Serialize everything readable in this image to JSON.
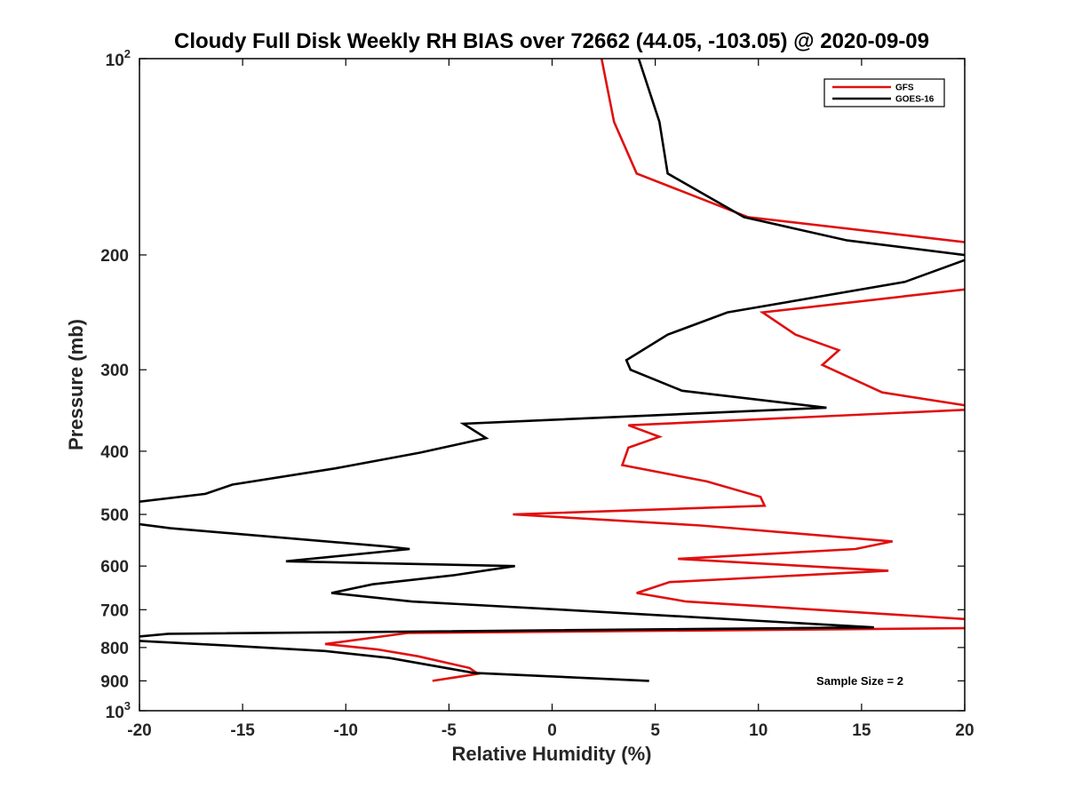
{
  "chart_data": {
    "type": "line",
    "title": "Cloudy Full Disk Weekly RH BIAS over 72662 (44.05, -103.05) @ 2020-09-09",
    "xlabel": "Relative Humidity (%)",
    "ylabel": "Pressure (mb)",
    "xlim": [
      -20,
      20
    ],
    "ylim": [
      100,
      1000
    ],
    "y_scale": "log",
    "y_reversed": true,
    "grid": false,
    "legend_position": "top-right",
    "x_ticks": [
      {
        "value": -20,
        "label": "-20"
      },
      {
        "value": -15,
        "label": "-15"
      },
      {
        "value": -10,
        "label": "-10"
      },
      {
        "value": -5,
        "label": "-5"
      },
      {
        "value": 0,
        "label": "0"
      },
      {
        "value": 5,
        "label": "5"
      },
      {
        "value": 10,
        "label": "10"
      },
      {
        "value": 15,
        "label": "15"
      },
      {
        "value": 20,
        "label": "20"
      }
    ],
    "y_ticks": [
      {
        "value": 100,
        "base": "10",
        "exp": "2"
      },
      {
        "value": 200,
        "label": "200"
      },
      {
        "value": 300,
        "label": "300"
      },
      {
        "value": 400,
        "label": "400"
      },
      {
        "value": 500,
        "label": "500"
      },
      {
        "value": 600,
        "label": "600"
      },
      {
        "value": 700,
        "label": "700"
      },
      {
        "value": 800,
        "label": "800"
      },
      {
        "value": 900,
        "label": "900"
      },
      {
        "value": 1000,
        "base": "10",
        "exp": "3"
      }
    ],
    "annotation": "Sample Size = 2",
    "series": [
      {
        "name": "GFS",
        "color": "#e01010",
        "points": [
          [
            2.4,
            100
          ],
          [
            3.0,
            125
          ],
          [
            4.1,
            150
          ],
          [
            9.5,
            175
          ],
          [
            20.5,
            192
          ],
          [
            20.5,
            225
          ],
          [
            10.2,
            245
          ],
          [
            11.8,
            265
          ],
          [
            13.9,
            280
          ],
          [
            13.1,
            295
          ],
          [
            16.0,
            325
          ],
          [
            20.5,
            342
          ],
          [
            20.5,
            345
          ],
          [
            3.7,
            365
          ],
          [
            5.2,
            380
          ],
          [
            3.7,
            395
          ],
          [
            3.4,
            420
          ],
          [
            7.5,
            445
          ],
          [
            10.1,
            470
          ],
          [
            10.3,
            485
          ],
          [
            -1.9,
            500
          ],
          [
            7.2,
            520
          ],
          [
            16.5,
            550
          ],
          [
            14.7,
            565
          ],
          [
            6.1,
            585
          ],
          [
            16.3,
            610
          ],
          [
            5.7,
            635
          ],
          [
            4.1,
            660
          ],
          [
            6.5,
            680
          ],
          [
            20.5,
            725
          ],
          [
            20.5,
            747
          ],
          [
            -7.0,
            760
          ],
          [
            -11.0,
            790
          ],
          [
            -8.5,
            805
          ],
          [
            -6.5,
            825
          ],
          [
            -4.0,
            860
          ],
          [
            -3.6,
            878
          ],
          [
            -5.8,
            900
          ]
        ]
      },
      {
        "name": "GOES-16",
        "color": "#000000",
        "points": [
          [
            4.2,
            100
          ],
          [
            5.2,
            125
          ],
          [
            5.6,
            150
          ],
          [
            9.3,
            175
          ],
          [
            14.3,
            190
          ],
          [
            20.5,
            201
          ],
          [
            17.1,
            220
          ],
          [
            8.5,
            245
          ],
          [
            5.6,
            265
          ],
          [
            3.6,
            290
          ],
          [
            3.8,
            300
          ],
          [
            6.3,
            323
          ],
          [
            13.3,
            343
          ],
          [
            -4.3,
            363
          ],
          [
            -3.2,
            382
          ],
          [
            -6.4,
            402
          ],
          [
            -10.5,
            425
          ],
          [
            -15.5,
            450
          ],
          [
            -16.8,
            465
          ],
          [
            -20.5,
            480
          ],
          [
            -20.5,
            515
          ],
          [
            -18.5,
            525
          ],
          [
            -8.0,
            560
          ],
          [
            -6.9,
            565
          ],
          [
            -12.9,
            590
          ],
          [
            -1.8,
            600
          ],
          [
            -4.8,
            620
          ],
          [
            -8.7,
            640
          ],
          [
            -10.7,
            660
          ],
          [
            -6.8,
            680
          ],
          [
            0.5,
            700
          ],
          [
            15.6,
            745
          ],
          [
            -18.6,
            762
          ],
          [
            -20.5,
            772
          ],
          [
            -20.5,
            780
          ],
          [
            -15.5,
            795
          ],
          [
            -11.0,
            810
          ],
          [
            -7.9,
            830
          ],
          [
            -3.8,
            875
          ],
          [
            4.7,
            900
          ]
        ]
      }
    ]
  }
}
